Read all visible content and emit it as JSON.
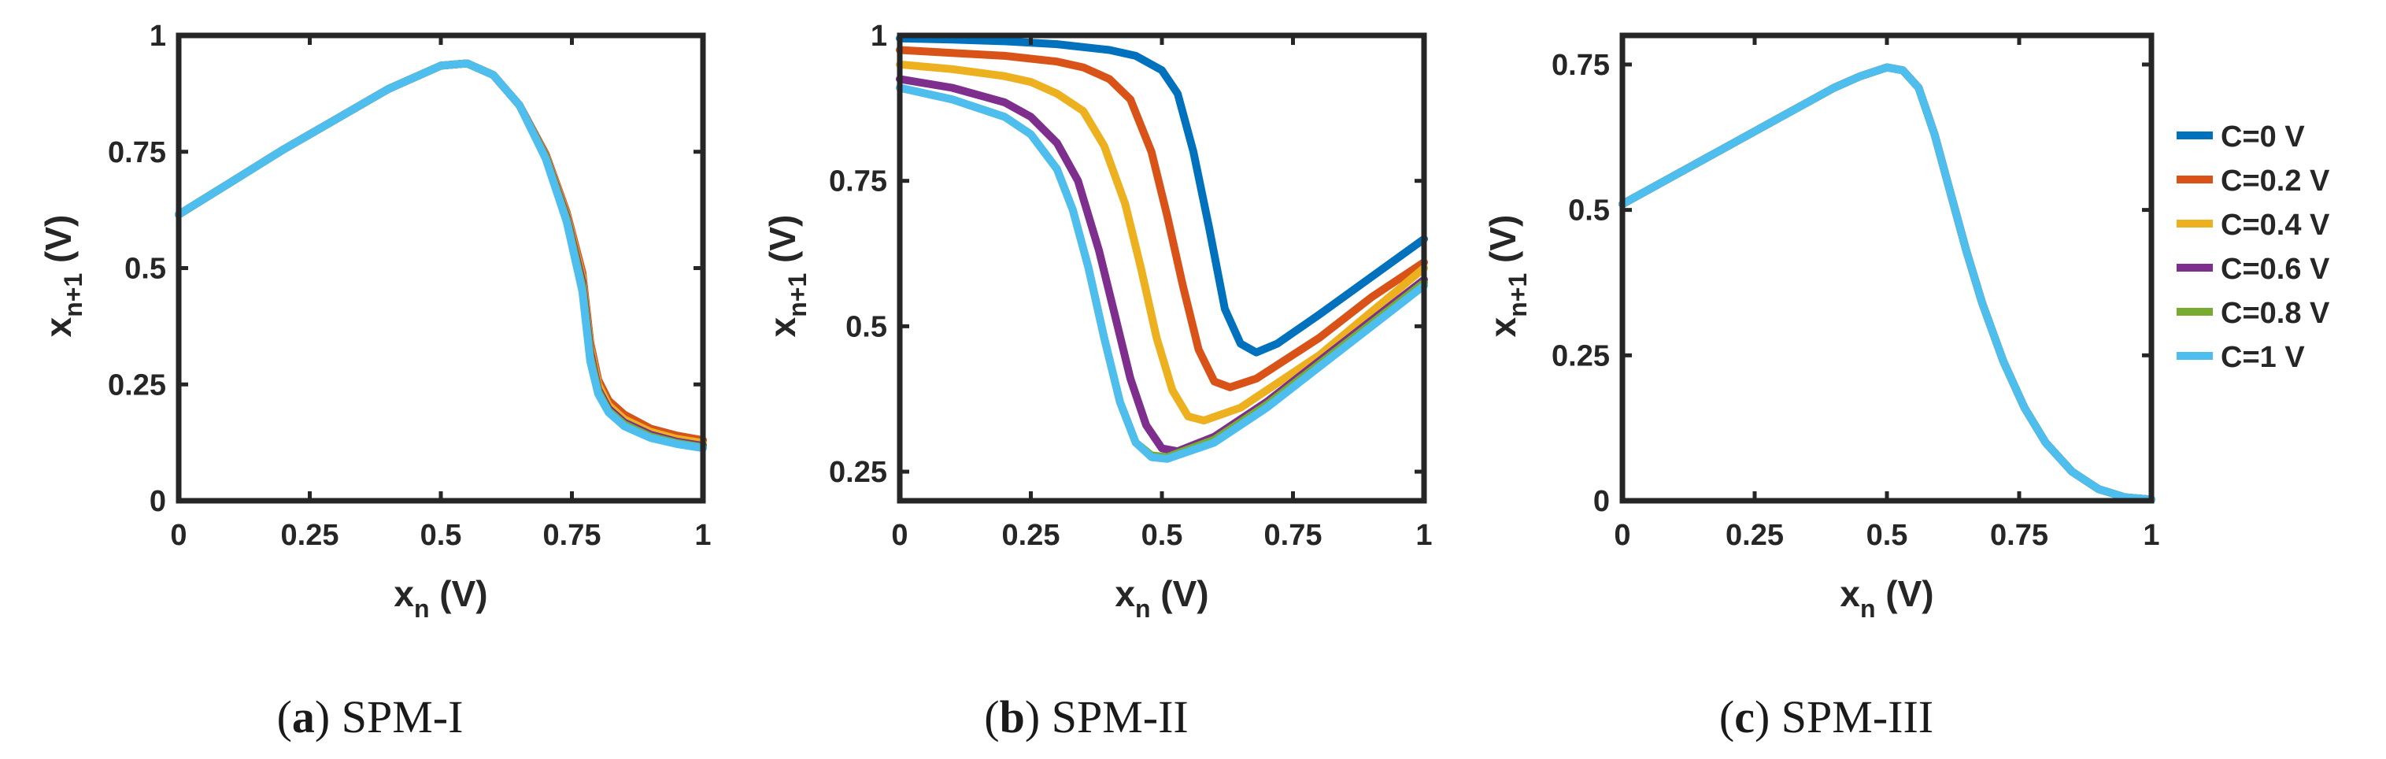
{
  "chart_data": [
    {
      "type": "line",
      "caption_letter": "a",
      "caption_text": "SPM-I",
      "xlim": [
        0,
        1
      ],
      "ylim": [
        0,
        1
      ],
      "xticks": [
        "0",
        "0.25",
        "0.5",
        "0.75",
        "1"
      ],
      "yticks": [
        "0",
        "0.25",
        "0.5",
        "0.75",
        "1"
      ],
      "xtick_values": [
        0,
        0.25,
        0.5,
        0.75,
        1
      ],
      "ytick_values": [
        0,
        0.25,
        0.5,
        0.75,
        1
      ],
      "xlabel_main": "x",
      "xlabel_sub": "n",
      "xlabel_unit": "(V)",
      "ylabel_main": "x",
      "ylabel_sub": "n+1",
      "ylabel_unit": "(V)",
      "series": [
        {
          "name": "C=0 V",
          "color": "#0072BD",
          "x": [
            0,
            0.1,
            0.2,
            0.3,
            0.4,
            0.5,
            0.55,
            0.6,
            0.65,
            0.7,
            0.74,
            0.77,
            0.785,
            0.8,
            0.82,
            0.85,
            0.9,
            0.95,
            1.0
          ],
          "y": [
            0.615,
            0.685,
            0.755,
            0.82,
            0.885,
            0.935,
            0.94,
            0.915,
            0.85,
            0.745,
            0.62,
            0.49,
            0.34,
            0.26,
            0.215,
            0.185,
            0.155,
            0.14,
            0.13
          ]
        },
        {
          "name": "C=0.2 V",
          "color": "#D95319",
          "x": [
            0,
            0.1,
            0.2,
            0.3,
            0.4,
            0.5,
            0.55,
            0.6,
            0.65,
            0.7,
            0.74,
            0.77,
            0.785,
            0.8,
            0.82,
            0.85,
            0.9,
            0.95,
            1.0
          ],
          "y": [
            0.615,
            0.685,
            0.755,
            0.82,
            0.885,
            0.935,
            0.94,
            0.915,
            0.85,
            0.745,
            0.62,
            0.49,
            0.34,
            0.26,
            0.215,
            0.185,
            0.155,
            0.14,
            0.13
          ]
        },
        {
          "name": "C=0.4 V",
          "color": "#EDB120",
          "x": [
            0,
            0.1,
            0.2,
            0.3,
            0.4,
            0.5,
            0.55,
            0.6,
            0.65,
            0.7,
            0.74,
            0.77,
            0.785,
            0.8,
            0.82,
            0.85,
            0.9,
            0.95,
            1.0
          ],
          "y": [
            0.615,
            0.685,
            0.755,
            0.82,
            0.885,
            0.935,
            0.94,
            0.915,
            0.85,
            0.742,
            0.615,
            0.48,
            0.33,
            0.25,
            0.205,
            0.175,
            0.148,
            0.133,
            0.124
          ]
        },
        {
          "name": "C=0.6 V",
          "color": "#7E2F8E",
          "x": [
            0,
            0.1,
            0.2,
            0.3,
            0.4,
            0.5,
            0.55,
            0.6,
            0.65,
            0.7,
            0.74,
            0.77,
            0.785,
            0.8,
            0.82,
            0.85,
            0.9,
            0.95,
            1.0
          ],
          "y": [
            0.615,
            0.685,
            0.755,
            0.82,
            0.885,
            0.935,
            0.94,
            0.915,
            0.85,
            0.74,
            0.61,
            0.47,
            0.32,
            0.24,
            0.198,
            0.168,
            0.142,
            0.127,
            0.118
          ]
        },
        {
          "name": "C=0.8 V",
          "color": "#77AC30",
          "x": [
            0,
            0.1,
            0.2,
            0.3,
            0.4,
            0.5,
            0.55,
            0.6,
            0.65,
            0.7,
            0.74,
            0.77,
            0.785,
            0.8,
            0.82,
            0.85,
            0.9,
            0.95,
            1.0
          ],
          "y": [
            0.615,
            0.685,
            0.755,
            0.82,
            0.885,
            0.935,
            0.94,
            0.915,
            0.85,
            0.738,
            0.605,
            0.46,
            0.31,
            0.235,
            0.193,
            0.164,
            0.138,
            0.124,
            0.115
          ]
        },
        {
          "name": "C=1 V",
          "color": "#4DBEEE",
          "x": [
            0,
            0.1,
            0.2,
            0.3,
            0.4,
            0.5,
            0.55,
            0.6,
            0.65,
            0.7,
            0.74,
            0.77,
            0.785,
            0.8,
            0.82,
            0.85,
            0.9,
            0.95,
            1.0
          ],
          "y": [
            0.615,
            0.685,
            0.755,
            0.82,
            0.885,
            0.935,
            0.94,
            0.915,
            0.85,
            0.735,
            0.6,
            0.45,
            0.3,
            0.23,
            0.19,
            0.16,
            0.135,
            0.122,
            0.113
          ]
        }
      ]
    },
    {
      "type": "line",
      "caption_letter": "b",
      "caption_text": "SPM-II",
      "xlim": [
        0,
        1
      ],
      "ylim": [
        0.2,
        1
      ],
      "xticks": [
        "0",
        "0.25",
        "0.5",
        "0.75",
        "1"
      ],
      "yticks": [
        "0.25",
        "0.5",
        "0.75",
        "1"
      ],
      "xtick_values": [
        0,
        0.25,
        0.5,
        0.75,
        1
      ],
      "ytick_values": [
        0.25,
        0.5,
        0.75,
        1
      ],
      "xlabel_main": "x",
      "xlabel_sub": "n",
      "xlabel_unit": "(V)",
      "ylabel_main": "x",
      "ylabel_sub": "n+1",
      "ylabel_unit": "(V)",
      "series": [
        {
          "name": "C=0 V",
          "color": "#0072BD",
          "x": [
            0,
            0.1,
            0.2,
            0.3,
            0.4,
            0.45,
            0.5,
            0.53,
            0.56,
            0.59,
            0.62,
            0.65,
            0.68,
            0.72,
            0.8,
            0.9,
            1.0
          ],
          "y": [
            0.995,
            0.993,
            0.99,
            0.985,
            0.975,
            0.965,
            0.94,
            0.9,
            0.8,
            0.67,
            0.53,
            0.47,
            0.455,
            0.47,
            0.52,
            0.585,
            0.65
          ]
        },
        {
          "name": "C=0.2 V",
          "color": "#D95319",
          "x": [
            0,
            0.1,
            0.2,
            0.3,
            0.35,
            0.4,
            0.44,
            0.48,
            0.51,
            0.54,
            0.57,
            0.6,
            0.63,
            0.68,
            0.8,
            0.9,
            1.0
          ],
          "y": [
            0.975,
            0.97,
            0.965,
            0.955,
            0.945,
            0.925,
            0.89,
            0.8,
            0.69,
            0.57,
            0.46,
            0.405,
            0.395,
            0.41,
            0.48,
            0.55,
            0.61
          ]
        },
        {
          "name": "C=0.4 V",
          "color": "#EDB120",
          "x": [
            0,
            0.1,
            0.2,
            0.25,
            0.3,
            0.35,
            0.39,
            0.43,
            0.46,
            0.49,
            0.52,
            0.55,
            0.58,
            0.65,
            0.8,
            0.9,
            1.0
          ],
          "y": [
            0.95,
            0.942,
            0.93,
            0.92,
            0.9,
            0.87,
            0.81,
            0.71,
            0.6,
            0.48,
            0.39,
            0.345,
            0.338,
            0.36,
            0.45,
            0.525,
            0.6
          ]
        },
        {
          "name": "C=0.6 V",
          "color": "#7E2F8E",
          "x": [
            0,
            0.1,
            0.2,
            0.25,
            0.3,
            0.34,
            0.38,
            0.41,
            0.44,
            0.47,
            0.5,
            0.53,
            0.6,
            0.7,
            0.8,
            0.9,
            1.0
          ],
          "y": [
            0.925,
            0.91,
            0.885,
            0.86,
            0.815,
            0.75,
            0.63,
            0.52,
            0.41,
            0.33,
            0.29,
            0.285,
            0.31,
            0.37,
            0.44,
            0.51,
            0.58
          ]
        },
        {
          "name": "C=0.8 V",
          "color": "#77AC30",
          "x": [
            0,
            0.1,
            0.2,
            0.25,
            0.3,
            0.33,
            0.36,
            0.39,
            0.42,
            0.45,
            0.48,
            0.51,
            0.6,
            0.7,
            0.8,
            0.9,
            1.0
          ],
          "y": [
            0.91,
            0.89,
            0.86,
            0.83,
            0.77,
            0.7,
            0.6,
            0.48,
            0.37,
            0.3,
            0.278,
            0.275,
            0.305,
            0.365,
            0.435,
            0.505,
            0.575
          ]
        },
        {
          "name": "C=1 V",
          "color": "#4DBEEE",
          "x": [
            0,
            0.1,
            0.2,
            0.25,
            0.3,
            0.33,
            0.36,
            0.39,
            0.42,
            0.45,
            0.48,
            0.51,
            0.6,
            0.7,
            0.8,
            0.9,
            1.0
          ],
          "y": [
            0.91,
            0.89,
            0.86,
            0.83,
            0.77,
            0.7,
            0.6,
            0.48,
            0.37,
            0.3,
            0.275,
            0.272,
            0.3,
            0.36,
            0.43,
            0.5,
            0.57
          ]
        }
      ]
    },
    {
      "type": "line",
      "caption_letter": "c",
      "caption_text": "SPM-III",
      "xlim": [
        0,
        1
      ],
      "ylim": [
        0,
        0.8
      ],
      "xticks": [
        "0",
        "0.25",
        "0.5",
        "0.75",
        "1"
      ],
      "yticks": [
        "0",
        "0.25",
        "0.5",
        "0.75"
      ],
      "xtick_values": [
        0,
        0.25,
        0.5,
        0.75,
        1
      ],
      "ytick_values": [
        0,
        0.25,
        0.5,
        0.75
      ],
      "xlabel_main": "x",
      "xlabel_sub": "n",
      "xlabel_unit": "(V)",
      "ylabel_main": "x",
      "ylabel_sub": "n+1",
      "ylabel_unit": "(V)",
      "series": [
        {
          "name": "C=0 V",
          "color": "#0072BD",
          "x": [
            0,
            0.1,
            0.2,
            0.3,
            0.4,
            0.45,
            0.5,
            0.53,
            0.56,
            0.59,
            0.62,
            0.65,
            0.68,
            0.72,
            0.76,
            0.8,
            0.85,
            0.9,
            0.95,
            1.0
          ],
          "y": [
            0.51,
            0.56,
            0.61,
            0.66,
            0.71,
            0.73,
            0.745,
            0.74,
            0.71,
            0.63,
            0.53,
            0.43,
            0.34,
            0.24,
            0.16,
            0.1,
            0.05,
            0.02,
            0.006,
            0.002
          ]
        },
        {
          "name": "C=0.2 V",
          "color": "#D95319",
          "x": [
            0,
            0.1,
            0.2,
            0.3,
            0.4,
            0.45,
            0.5,
            0.53,
            0.56,
            0.59,
            0.62,
            0.65,
            0.68,
            0.72,
            0.76,
            0.8,
            0.85,
            0.9,
            0.95,
            1.0
          ],
          "y": [
            0.51,
            0.56,
            0.61,
            0.66,
            0.71,
            0.73,
            0.745,
            0.74,
            0.71,
            0.63,
            0.53,
            0.43,
            0.34,
            0.24,
            0.16,
            0.1,
            0.05,
            0.02,
            0.006,
            0.002
          ]
        },
        {
          "name": "C=0.4 V",
          "color": "#EDB120",
          "x": [
            0,
            0.1,
            0.2,
            0.3,
            0.4,
            0.45,
            0.5,
            0.53,
            0.56,
            0.59,
            0.62,
            0.65,
            0.68,
            0.72,
            0.76,
            0.8,
            0.85,
            0.9,
            0.95,
            1.0
          ],
          "y": [
            0.51,
            0.56,
            0.61,
            0.66,
            0.71,
            0.73,
            0.745,
            0.74,
            0.71,
            0.63,
            0.53,
            0.43,
            0.34,
            0.24,
            0.16,
            0.1,
            0.05,
            0.02,
            0.006,
            0.002
          ]
        },
        {
          "name": "C=0.6 V",
          "color": "#7E2F8E",
          "x": [
            0,
            0.1,
            0.2,
            0.3,
            0.4,
            0.45,
            0.5,
            0.53,
            0.56,
            0.59,
            0.62,
            0.65,
            0.68,
            0.72,
            0.76,
            0.8,
            0.85,
            0.9,
            0.95,
            1.0
          ],
          "y": [
            0.51,
            0.56,
            0.61,
            0.66,
            0.71,
            0.73,
            0.745,
            0.74,
            0.71,
            0.63,
            0.53,
            0.43,
            0.34,
            0.24,
            0.16,
            0.1,
            0.05,
            0.02,
            0.006,
            0.002
          ]
        },
        {
          "name": "C=0.8 V",
          "color": "#77AC30",
          "x": [
            0,
            0.1,
            0.2,
            0.3,
            0.4,
            0.45,
            0.5,
            0.53,
            0.56,
            0.59,
            0.62,
            0.65,
            0.68,
            0.72,
            0.76,
            0.8,
            0.85,
            0.9,
            0.95,
            1.0
          ],
          "y": [
            0.51,
            0.56,
            0.61,
            0.66,
            0.71,
            0.73,
            0.745,
            0.74,
            0.71,
            0.63,
            0.53,
            0.43,
            0.34,
            0.24,
            0.16,
            0.1,
            0.05,
            0.02,
            0.006,
            0.002
          ]
        },
        {
          "name": "C=1 V",
          "color": "#4DBEEE",
          "x": [
            0,
            0.1,
            0.2,
            0.3,
            0.4,
            0.45,
            0.5,
            0.53,
            0.56,
            0.59,
            0.62,
            0.65,
            0.68,
            0.72,
            0.76,
            0.8,
            0.85,
            0.9,
            0.95,
            1.0
          ],
          "y": [
            0.51,
            0.56,
            0.61,
            0.66,
            0.71,
            0.73,
            0.745,
            0.74,
            0.71,
            0.63,
            0.53,
            0.43,
            0.34,
            0.24,
            0.16,
            0.1,
            0.05,
            0.02,
            0.006,
            0.002
          ]
        }
      ]
    }
  ],
  "legend": {
    "entries": [
      {
        "label": "C=0 V",
        "color": "#0072BD"
      },
      {
        "label": "C=0.2 V",
        "color": "#D95319"
      },
      {
        "label": "C=0.4 V",
        "color": "#EDB120"
      },
      {
        "label": "C=0.6 V",
        "color": "#7E2F8E"
      },
      {
        "label": "C=0.8 V",
        "color": "#77AC30"
      },
      {
        "label": "C=1 V",
        "color": "#4DBEEE"
      }
    ]
  }
}
